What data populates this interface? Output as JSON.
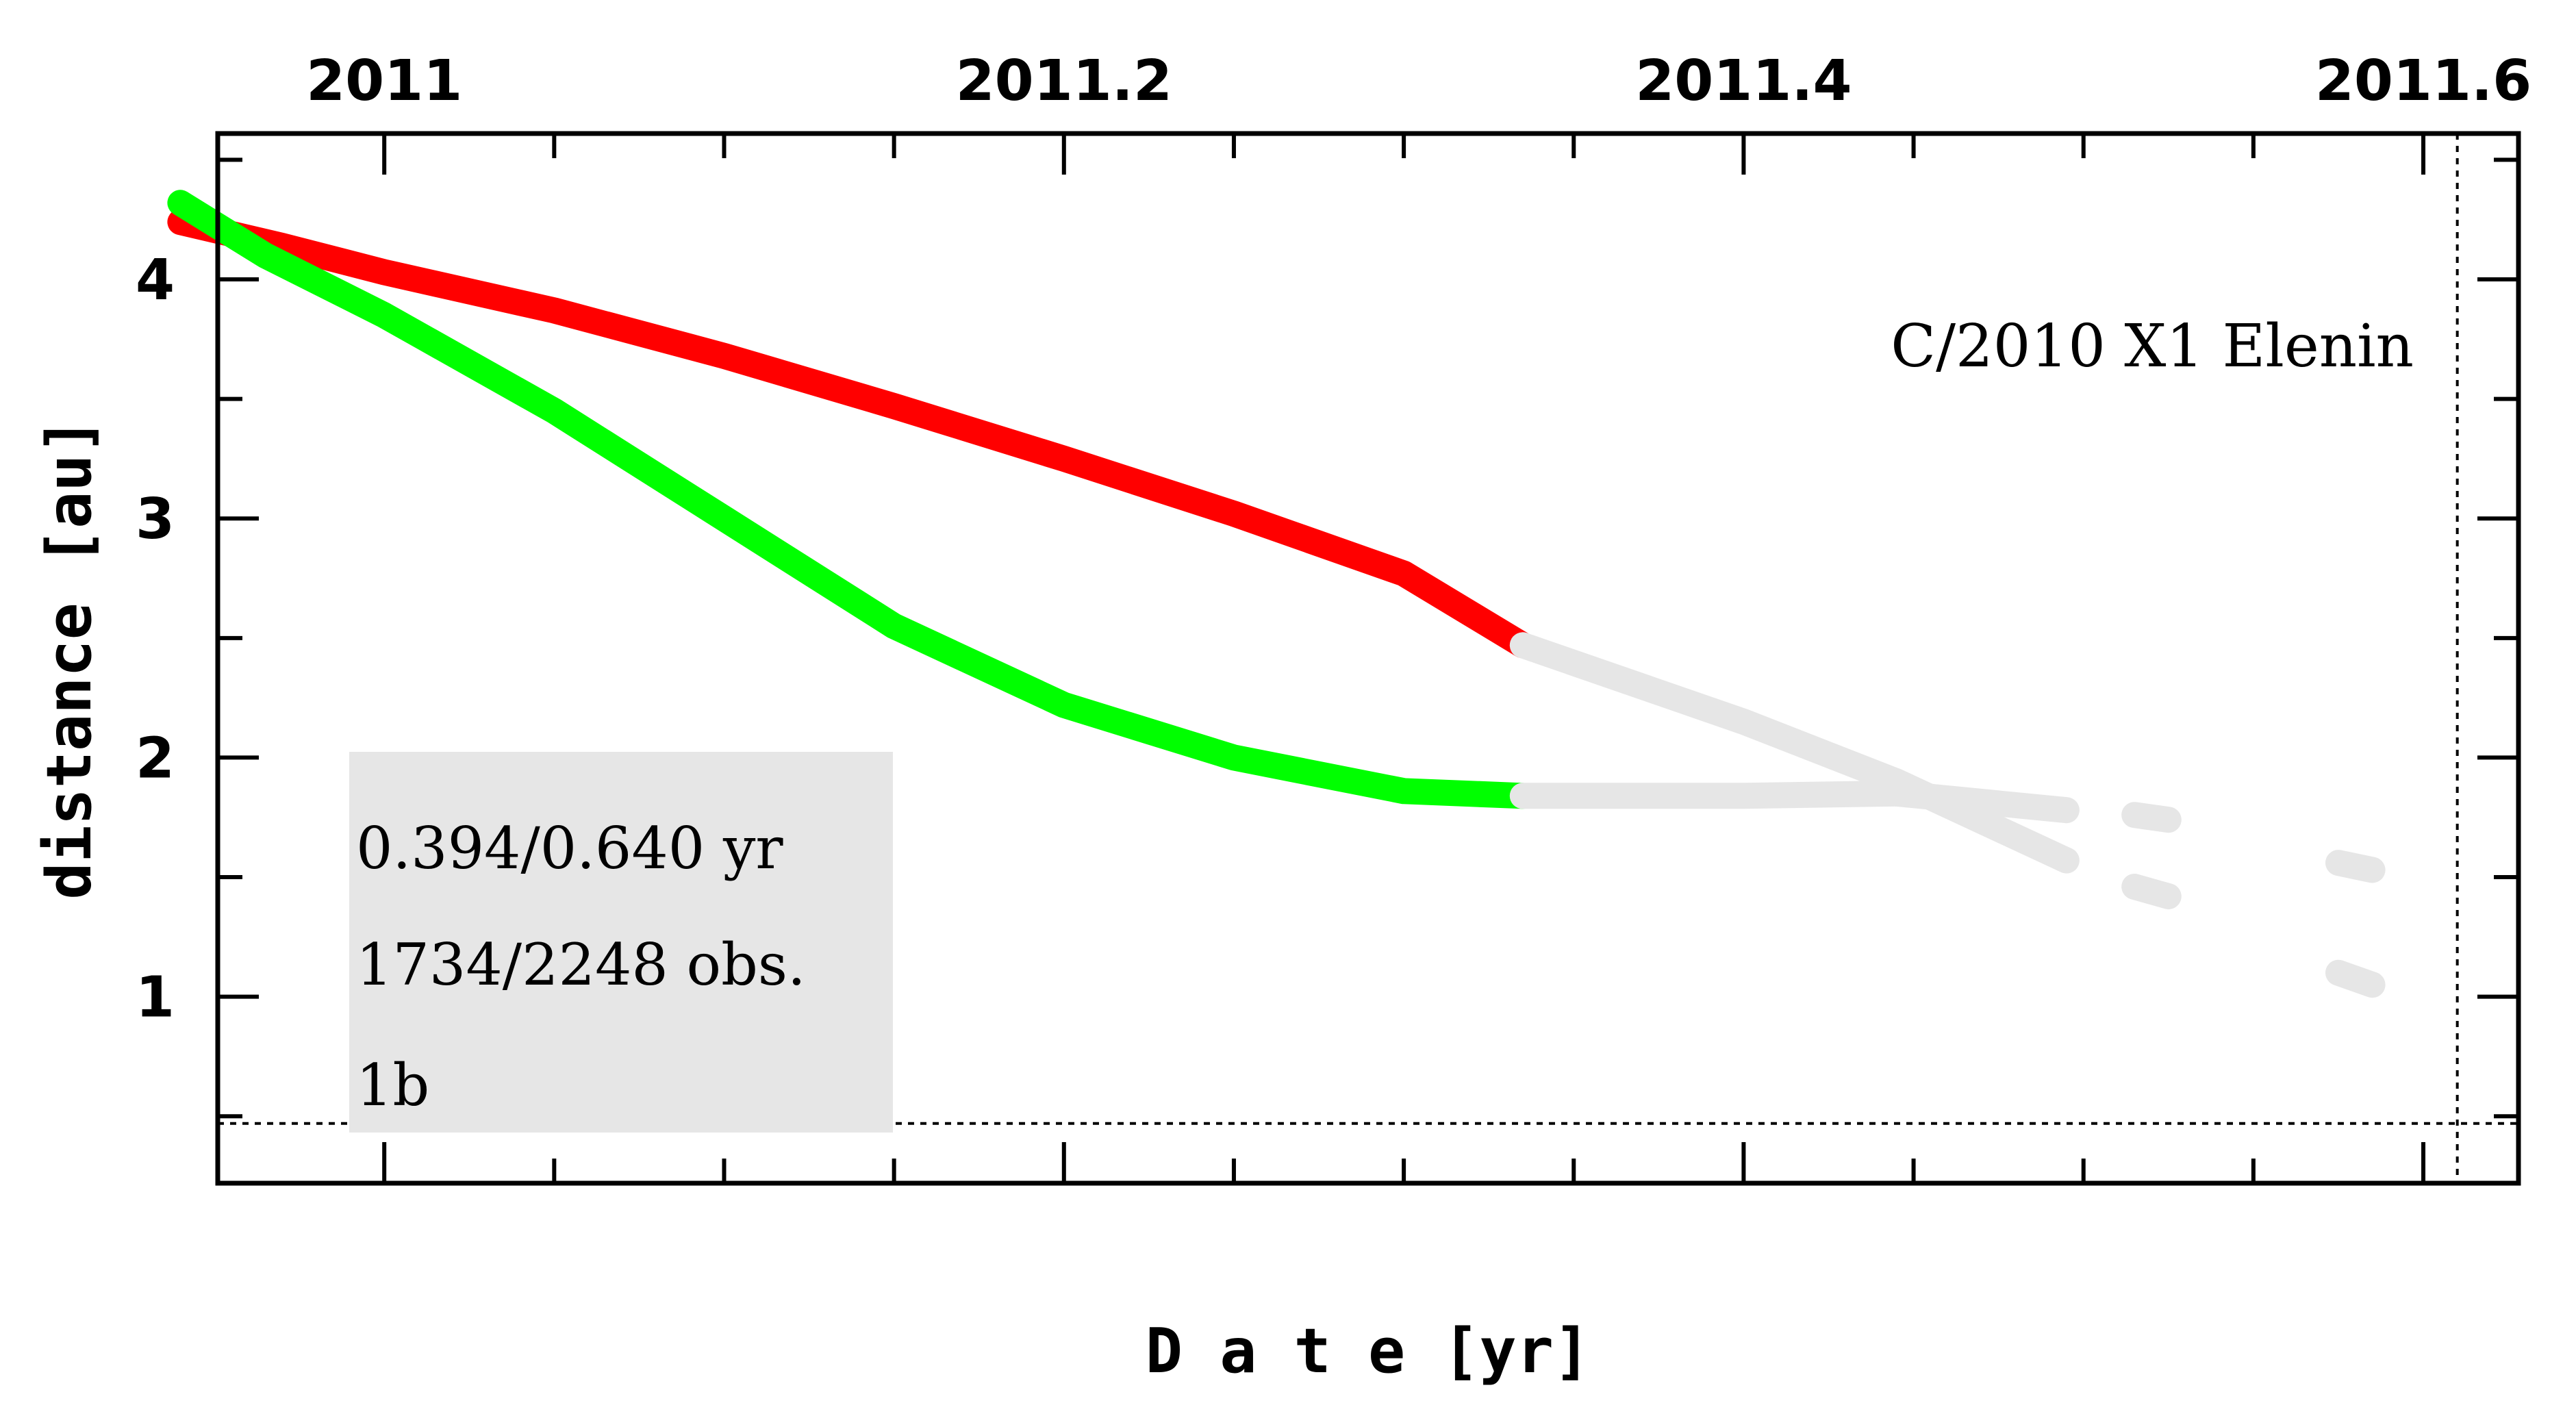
{
  "chart_data": {
    "type": "scatter",
    "title": "",
    "xlabel": "D a t e [yr]",
    "ylabel": "distance [au]",
    "xlim": [
      2010.951,
      2011.628
    ],
    "ylim": [
      0.22,
      4.61
    ],
    "x_ticks": [
      {
        "value": 2011.0,
        "label": "2011"
      },
      {
        "value": 2011.2,
        "label": "2011.2"
      },
      {
        "value": 2011.4,
        "label": "2011.4"
      },
      {
        "value": 2011.6,
        "label": "2011.6"
      }
    ],
    "y_ticks": [
      {
        "value": 1,
        "label": "1"
      },
      {
        "value": 2,
        "label": "2"
      },
      {
        "value": 3,
        "label": "3"
      },
      {
        "value": 4,
        "label": "4"
      }
    ],
    "x_tick_position": "top",
    "grid": false,
    "reference_lines": {
      "horizontal_dotted_y": 0.47,
      "vertical_dotted_x": 2011.61
    },
    "annotation": "C/2010 X1 Elenin",
    "info_box": {
      "lines": [
        "0.394/0.640 yr",
        "1734/2248 obs.",
        "1b"
      ],
      "background": "#e6e6e6"
    },
    "series": [
      {
        "color": "#ff0000",
        "segments": [
          [
            [
              2010.94,
              4.24
            ],
            [
              2010.97,
              4.14
            ],
            [
              2011.0,
              4.03
            ],
            [
              2011.05,
              3.87
            ],
            [
              2011.1,
              3.68
            ],
            [
              2011.15,
              3.47
            ],
            [
              2011.2,
              3.25
            ],
            [
              2011.25,
              3.02
            ],
            [
              2011.3,
              2.77
            ],
            [
              2011.335,
              2.47
            ]
          ]
        ]
      },
      {
        "color": "#e6e6e6",
        "segments": [
          [
            [
              2011.335,
              2.47
            ],
            [
              2011.4,
              2.15
            ],
            [
              2011.445,
              1.9
            ]
          ],
          [
            [
              2011.445,
              1.9
            ],
            [
              2011.495,
              1.57
            ]
          ],
          [
            [
              2011.515,
              1.46
            ],
            [
              2011.525,
              1.42
            ]
          ],
          [
            [
              2011.575,
              1.1
            ],
            [
              2011.585,
              1.05
            ]
          ]
        ]
      },
      {
        "color": "#00ff00",
        "segments": [
          [
            [
              2010.94,
              4.32
            ],
            [
              2010.965,
              4.1
            ],
            [
              2011.0,
              3.85
            ],
            [
              2011.05,
              3.45
            ],
            [
              2011.1,
              3.0
            ],
            [
              2011.15,
              2.55
            ],
            [
              2011.2,
              2.22
            ],
            [
              2011.25,
              2.0
            ],
            [
              2011.3,
              1.86
            ],
            [
              2011.335,
              1.84
            ]
          ]
        ]
      },
      {
        "color": "#e6e6e6",
        "segments": [
          [
            [
              2011.335,
              1.84
            ],
            [
              2011.4,
              1.84
            ],
            [
              2011.445,
              1.85
            ]
          ],
          [
            [
              2011.445,
              1.85
            ],
            [
              2011.495,
              1.78
            ]
          ],
          [
            [
              2011.515,
              1.76
            ],
            [
              2011.525,
              1.74
            ]
          ],
          [
            [
              2011.575,
              1.56
            ],
            [
              2011.585,
              1.53
            ]
          ]
        ]
      }
    ]
  }
}
